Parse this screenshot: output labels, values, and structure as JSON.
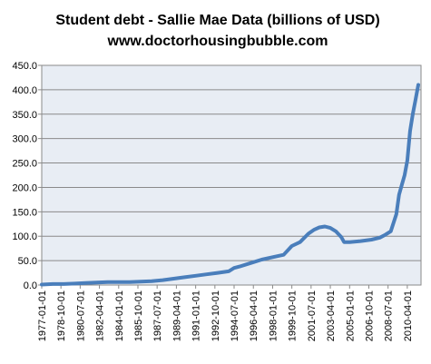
{
  "chart_data": {
    "type": "line",
    "title": "Student debt - Sallie Mae Data (billions of USD)",
    "subtitle": "www.doctorhousingbubble.com",
    "xlabel": "",
    "ylabel": "",
    "ylim": [
      0,
      450
    ],
    "grid": true,
    "legend": "none",
    "y_ticks": [
      "0.0",
      "50.0",
      "100.0",
      "150.0",
      "200.0",
      "250.0",
      "300.0",
      "350.0",
      "400.0",
      "450.0"
    ],
    "y_tick_values": [
      0,
      50,
      100,
      150,
      200,
      250,
      300,
      350,
      400,
      450
    ],
    "x_ticks": [
      "1977-01-01",
      "1978-10-01",
      "1980-07-01",
      "1982-04-01",
      "1984-01-01",
      "1985-10-01",
      "1987-07-01",
      "1989-04-01",
      "1991-01-01",
      "1992-10-01",
      "1994-07-01",
      "1996-04-01",
      "1998-01-01",
      "1999-10-01",
      "2001-07-01",
      "2003-04-01",
      "2005-01-01",
      "2006-10-01",
      "2008-07-01",
      "2010-04-01"
    ],
    "series": [
      {
        "color": "#4a7ebb",
        "x": [
          "1977-01-01",
          "1978-01-01",
          "1979-01-01",
          "1980-01-01",
          "1981-01-01",
          "1982-01-01",
          "1983-01-01",
          "1984-01-01",
          "1985-01-01",
          "1986-01-01",
          "1987-01-01",
          "1988-01-01",
          "1989-01-01",
          "1990-01-01",
          "1991-01-01",
          "1992-01-01",
          "1993-01-01",
          "1994-01-01",
          "1994-07-01",
          "1995-01-01",
          "1996-01-01",
          "1997-01-01",
          "1998-01-01",
          "1999-01-01",
          "1999-10-01",
          "2000-07-01",
          "2001-04-01",
          "2001-10-01",
          "2002-04-01",
          "2002-10-01",
          "2003-04-01",
          "2003-10-01",
          "2004-04-01",
          "2004-07-01",
          "2005-01-01",
          "2006-01-01",
          "2007-01-01",
          "2007-10-01",
          "2008-04-01",
          "2008-10-01",
          "2009-04-01",
          "2009-07-01",
          "2009-10-01",
          "2010-01-01",
          "2010-04-01",
          "2010-07-01",
          "2010-10-01",
          "2011-01-01",
          "2011-04-01"
        ],
        "values": [
          1,
          2,
          2,
          3,
          4,
          5,
          6,
          6,
          6,
          7,
          8,
          10,
          13,
          16,
          19,
          22,
          25,
          28,
          35,
          38,
          45,
          52,
          57,
          62,
          80,
          88,
          105,
          113,
          118,
          120,
          117,
          110,
          98,
          88,
          88,
          90,
          93,
          97,
          103,
          110,
          145,
          185,
          205,
          225,
          255,
          315,
          350,
          380,
          410
        ]
      }
    ]
  }
}
